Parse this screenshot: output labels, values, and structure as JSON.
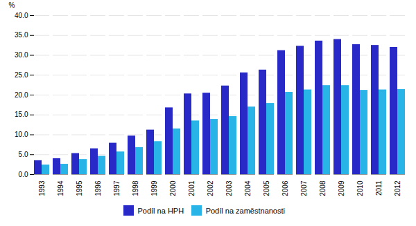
{
  "chart_data": {
    "type": "bar",
    "categories": [
      "1993",
      "1994",
      "1995",
      "1996",
      "1997",
      "1998",
      "1999",
      "2000",
      "2001",
      "2002",
      "2003",
      "2004",
      "2005",
      "2006",
      "2007",
      "2008",
      "2009",
      "2010",
      "2011",
      "2012"
    ],
    "series": [
      {
        "name": "Podíl na HPH",
        "color": "#2929c8",
        "values": [
          3.5,
          4.0,
          5.3,
          6.5,
          7.9,
          9.7,
          11.2,
          16.8,
          20.3,
          20.5,
          22.3,
          25.6,
          26.3,
          31.2,
          32.3,
          33.6,
          34.0,
          32.7,
          32.5,
          32.0
        ]
      },
      {
        "name": "Podíl na zaměstnanosti",
        "color": "#29b4e8",
        "values": [
          2.4,
          2.6,
          3.8,
          4.6,
          5.7,
          6.8,
          8.3,
          11.5,
          13.5,
          13.9,
          14.6,
          17.0,
          17.9,
          20.7,
          21.3,
          22.4,
          22.4,
          21.2,
          21.3,
          21.4
        ]
      }
    ],
    "ylabel": "%",
    "ylim": [
      0,
      40
    ],
    "yticks": [
      {
        "value": 0,
        "label": "0.0"
      },
      {
        "value": 5,
        "label": "5.0"
      },
      {
        "value": 10,
        "label": "10.0"
      },
      {
        "value": 15,
        "label": "15.0"
      },
      {
        "value": 20,
        "label": "20.0"
      },
      {
        "value": 25,
        "label": "25.0"
      },
      {
        "value": 30,
        "label": "30.0"
      },
      {
        "value": 35,
        "label": "35.0"
      },
      {
        "value": 40,
        "label": "40.0"
      }
    ],
    "grid": true,
    "legend": "bottom"
  }
}
